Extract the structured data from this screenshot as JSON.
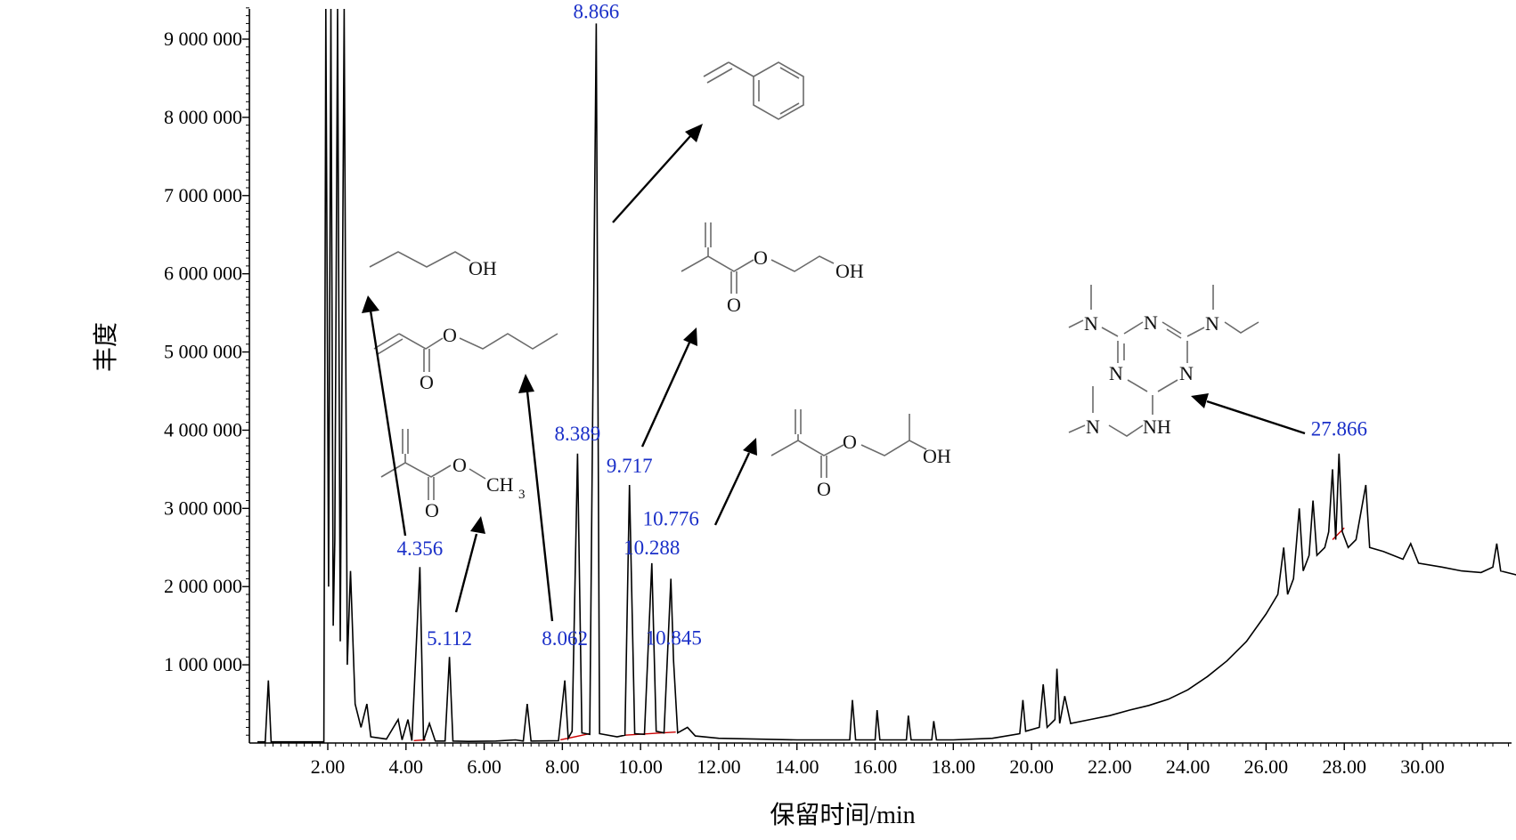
{
  "chart_data": {
    "type": "line",
    "title": "",
    "xlabel": "保留时间/min",
    "ylabel": "丰度",
    "xlim": [
      0.2,
      32.4
    ],
    "ylim": [
      0,
      9500000
    ],
    "x_ticks": [
      2,
      4,
      6,
      8,
      10,
      12,
      14,
      16,
      18,
      20,
      22,
      24,
      26,
      28,
      30
    ],
    "x_tick_labels": [
      "2.00",
      "4.00",
      "6.00",
      "8.00",
      "10.00",
      "12.00",
      "14.00",
      "16.00",
      "18.00",
      "20.00",
      "22.00",
      "24.00",
      "26.00",
      "28.00",
      "30.00"
    ],
    "y_ticks": [
      1000000,
      2000000,
      3000000,
      4000000,
      5000000,
      6000000,
      7000000,
      8000000,
      9000000
    ],
    "y_tick_labels": [
      "1 000 000",
      "2 000 000",
      "3 000 000",
      "4 000 000",
      "5 000 000",
      "6 000 000",
      "7 000 000",
      "8 000 000",
      "9 000 000"
    ],
    "grid": false,
    "line_color": "#000000",
    "label_color": "#1a2fc8",
    "baseline_color": "#cc0000",
    "series": [
      {
        "points": [
          [
            0.2,
            15000
          ],
          [
            0.4,
            15000
          ],
          [
            0.48,
            800000
          ],
          [
            0.55,
            15000
          ],
          [
            1.9,
            15000
          ],
          [
            1.95,
            9500000
          ],
          [
            2.02,
            2000000
          ],
          [
            2.08,
            9500000
          ],
          [
            2.14,
            1500000
          ],
          [
            2.18,
            2600000
          ],
          [
            2.25,
            9500000
          ],
          [
            2.32,
            1300000
          ],
          [
            2.42,
            9500000
          ],
          [
            2.5,
            1000000
          ],
          [
            2.58,
            2200000
          ],
          [
            2.7,
            500000
          ],
          [
            2.85,
            200000
          ],
          [
            3.0,
            500000
          ],
          [
            3.1,
            80000
          ],
          [
            3.5,
            50000
          ],
          [
            3.8,
            300000
          ],
          [
            3.9,
            40000
          ],
          [
            4.05,
            300000
          ],
          [
            4.15,
            30000
          ],
          [
            4.356,
            2250000
          ],
          [
            4.45,
            30000
          ],
          [
            4.6,
            250000
          ],
          [
            4.75,
            25000
          ],
          [
            5.0,
            25000
          ],
          [
            5.112,
            1100000
          ],
          [
            5.2,
            25000
          ],
          [
            5.6,
            20000
          ],
          [
            6.3,
            25000
          ],
          [
            6.8,
            40000
          ],
          [
            7.0,
            25000
          ],
          [
            7.1,
            500000
          ],
          [
            7.2,
            25000
          ],
          [
            7.9,
            30000
          ],
          [
            8.062,
            800000
          ],
          [
            8.15,
            60000
          ],
          [
            8.25,
            150000
          ],
          [
            8.389,
            3700000
          ],
          [
            8.5,
            130000
          ],
          [
            8.7,
            110000
          ],
          [
            8.866,
            9200000
          ],
          [
            8.95,
            120000
          ],
          [
            9.4,
            80000
          ],
          [
            9.6,
            100000
          ],
          [
            9.717,
            3300000
          ],
          [
            9.85,
            120000
          ],
          [
            10.1,
            110000
          ],
          [
            10.288,
            2300000
          ],
          [
            10.4,
            150000
          ],
          [
            10.6,
            130000
          ],
          [
            10.776,
            2100000
          ],
          [
            10.845,
            1050000
          ],
          [
            10.95,
            130000
          ],
          [
            11.2,
            200000
          ],
          [
            11.4,
            90000
          ],
          [
            12.0,
            60000
          ],
          [
            14.0,
            40000
          ],
          [
            15.35,
            40000
          ],
          [
            15.42,
            550000
          ],
          [
            15.5,
            40000
          ],
          [
            16.0,
            40000
          ],
          [
            16.05,
            420000
          ],
          [
            16.12,
            40000
          ],
          [
            16.8,
            40000
          ],
          [
            16.85,
            350000
          ],
          [
            16.92,
            40000
          ],
          [
            17.45,
            40000
          ],
          [
            17.5,
            280000
          ],
          [
            17.57,
            40000
          ],
          [
            18.0,
            40000
          ],
          [
            19.0,
            60000
          ],
          [
            19.7,
            120000
          ],
          [
            19.78,
            550000
          ],
          [
            19.85,
            150000
          ],
          [
            20.2,
            200000
          ],
          [
            20.3,
            750000
          ],
          [
            20.4,
            200000
          ],
          [
            20.6,
            300000
          ],
          [
            20.65,
            950000
          ],
          [
            20.72,
            250000
          ],
          [
            20.85,
            600000
          ],
          [
            21.0,
            250000
          ],
          [
            21.5,
            300000
          ],
          [
            22.0,
            350000
          ],
          [
            22.5,
            420000
          ],
          [
            23.0,
            480000
          ],
          [
            23.5,
            560000
          ],
          [
            24.0,
            680000
          ],
          [
            24.5,
            850000
          ],
          [
            25.0,
            1050000
          ],
          [
            25.5,
            1300000
          ],
          [
            26.0,
            1650000
          ],
          [
            26.3,
            1900000
          ],
          [
            26.45,
            2500000
          ],
          [
            26.55,
            1900000
          ],
          [
            26.7,
            2100000
          ],
          [
            26.85,
            3000000
          ],
          [
            26.95,
            2200000
          ],
          [
            27.1,
            2400000
          ],
          [
            27.2,
            3100000
          ],
          [
            27.3,
            2400000
          ],
          [
            27.5,
            2500000
          ],
          [
            27.6,
            2700000
          ],
          [
            27.7,
            3500000
          ],
          [
            27.78,
            2600000
          ],
          [
            27.866,
            3700000
          ],
          [
            27.95,
            2700000
          ],
          [
            28.1,
            2500000
          ],
          [
            28.3,
            2600000
          ],
          [
            28.55,
            3300000
          ],
          [
            28.65,
            2500000
          ],
          [
            29.0,
            2450000
          ],
          [
            29.5,
            2350000
          ],
          [
            29.7,
            2550000
          ],
          [
            29.9,
            2300000
          ],
          [
            30.5,
            2250000
          ],
          [
            31.0,
            2200000
          ],
          [
            31.5,
            2180000
          ],
          [
            31.8,
            2250000
          ],
          [
            31.9,
            2550000
          ],
          [
            32.0,
            2200000
          ],
          [
            32.4,
            2150000
          ]
        ]
      }
    ],
    "peak_labels": [
      {
        "text": "4.356",
        "x": 4.356,
        "y": 2400000
      },
      {
        "text": "5.112",
        "x": 5.112,
        "y": 1250000
      },
      {
        "text": "8.062",
        "x": 8.062,
        "y": 1250000
      },
      {
        "text": "8.389",
        "x": 8.389,
        "y": 3870000
      },
      {
        "text": "8.866",
        "x": 8.866,
        "y": 9270000
      },
      {
        "text": "9.717",
        "x": 9.717,
        "y": 3460000
      },
      {
        "text": "10.288",
        "x": 10.288,
        "y": 2410000
      },
      {
        "text": "10.776",
        "x": 10.776,
        "y": 2780000
      },
      {
        "text": "10.845",
        "x": 10.845,
        "y": 1260000
      },
      {
        "text": "27.866",
        "x": 27.866,
        "y": 3930000
      }
    ]
  },
  "structures": {
    "butanol_oh": "OH",
    "butyl_acrylate_o": "O",
    "butyl_acrylate_carbonyl_o": "O",
    "mma_o": "O",
    "mma_carbonyl_o": "O",
    "mma_ch3": "CH",
    "mma_ch3_sub": "3",
    "hema_o": "O",
    "hema_carbonyl_o": "O",
    "hema_oh": "OH",
    "hpma_o": "O",
    "hpma_carbonyl_o": "O",
    "hpma_oh": "OH",
    "triazine_n1": "N",
    "triazine_n2": "N",
    "triazine_n3": "N",
    "triazine_nme2_left": "N",
    "triazine_nme2_right": "N",
    "triazine_n_chain": "N",
    "triazine_nh": "NH"
  }
}
